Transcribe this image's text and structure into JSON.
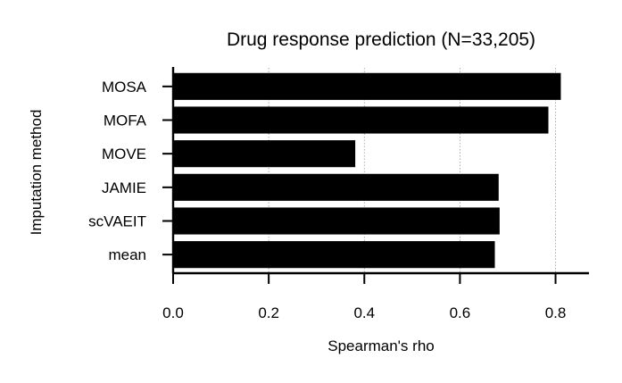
{
  "chart_data": {
    "type": "bar",
    "orientation": "horizontal",
    "title": "Drug response prediction (N=33,205)",
    "xlabel": "Spearman's rho",
    "ylabel": "Imputation method",
    "categories": [
      "MOSA",
      "MOFA",
      "MOVE",
      "JAMIE",
      "scVAEIT",
      "mean"
    ],
    "values": [
      0.811,
      0.785,
      0.381,
      0.681,
      0.683,
      0.673
    ],
    "xlim": [
      0,
      0.855
    ],
    "xticks": [
      "0.0",
      "0.2",
      "0.4",
      "0.6",
      "0.8"
    ],
    "grid": "x-dotted",
    "bar_color": "#000000"
  }
}
